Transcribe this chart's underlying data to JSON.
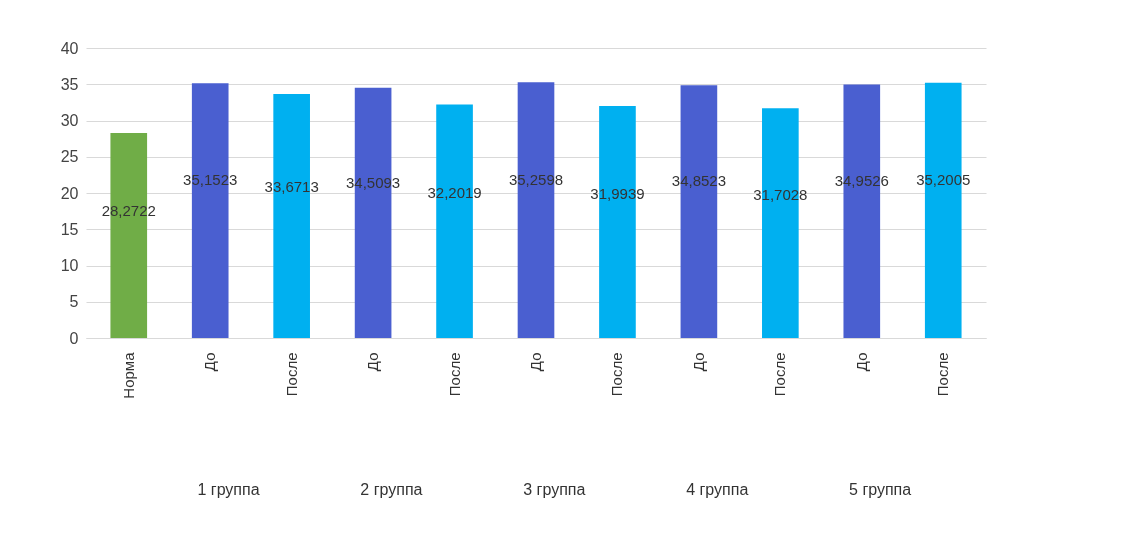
{
  "chart_data": {
    "type": "bar",
    "categories": [
      "Норма",
      "До",
      "После",
      "До",
      "После",
      "До",
      "После",
      "До",
      "После",
      "До",
      "После"
    ],
    "values": [
      28.2722,
      35.1523,
      33.6713,
      34.5093,
      32.2019,
      35.2598,
      31.9939,
      34.8523,
      31.7028,
      34.9526,
      35.2005
    ],
    "value_labels": [
      "28,2722",
      "35,1523",
      "33,6713",
      "34,5093",
      "32,2019",
      "35,2598",
      "31,9939",
      "34,8523",
      "31,7028",
      "34,9526",
      "35,2005"
    ],
    "colors": [
      "#70ad47",
      "#4a5fd0",
      "#00b0f0",
      "#4a5fd0",
      "#00b0f0",
      "#4a5fd0",
      "#00b0f0",
      "#4a5fd0",
      "#00b0f0",
      "#4a5fd0",
      "#00b0f0"
    ],
    "annotations": [
      "1 группа",
      "2 группа",
      "3 группа",
      "4 группа",
      "5 группа"
    ],
    "ylim": [
      0,
      40
    ],
    "yticks": [
      0,
      5,
      10,
      15,
      20,
      25,
      30,
      35,
      40
    ],
    "grid": true
  }
}
